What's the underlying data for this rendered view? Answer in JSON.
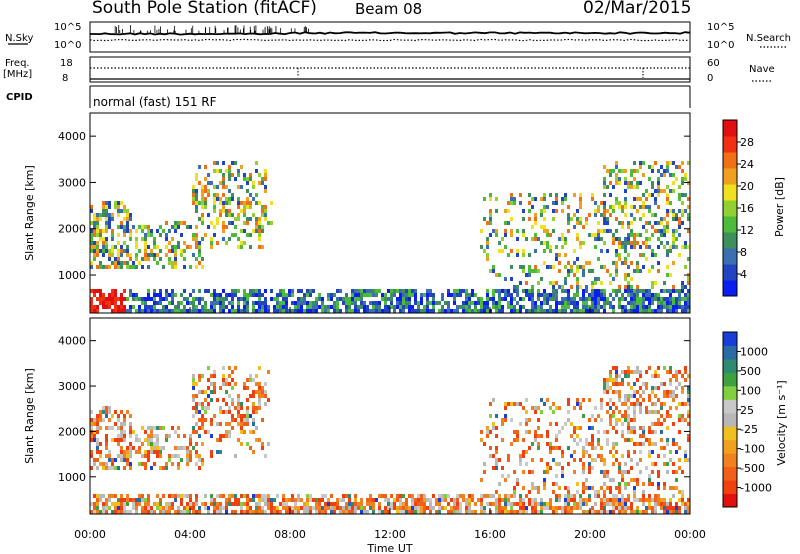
{
  "header": {
    "station": "South Pole Station (fitACF)",
    "beam": "Beam 08",
    "date": "02/Mar/2015"
  },
  "strip_nsky": {
    "left_label": "N.Sky",
    "right_label": "N.Search",
    "left_ticks": [
      "10^5",
      "10^0"
    ],
    "right_ticks": [
      "10^5",
      "10^0"
    ]
  },
  "strip_freq": {
    "left_label_1": "Freq.",
    "left_label_2": "[MHz]",
    "right_label": "Nave",
    "left_ticks": [
      "18",
      "8"
    ],
    "right_ticks": [
      "60",
      "0"
    ]
  },
  "cpid": {
    "label": "CPID",
    "text": "normal (fast) 151 RF"
  },
  "chart_data": [
    {
      "type": "heatmap",
      "name": "power",
      "ylabel": "Slant Range [km]",
      "y_ticks": [
        1000,
        2000,
        3000,
        4000
      ],
      "ylim": [
        180,
        4500
      ],
      "colorbar_label": "Power [dB]",
      "colorbar_ticks": [
        "4",
        "8",
        "12",
        "16",
        "20",
        "24",
        "28"
      ],
      "colorbar_colors": [
        "#0a1ef0",
        "#2244c0",
        "#3c6fb0",
        "#3f8f5c",
        "#4dbb3a",
        "#90d030",
        "#f0e020",
        "#f0a020",
        "#f07018",
        "#f03010",
        "#e01010"
      ]
    },
    {
      "type": "heatmap",
      "name": "velocity",
      "ylabel": "Slant Range [km]",
      "y_ticks": [
        1000,
        2000,
        3000,
        4000
      ],
      "ylim": [
        180,
        4500
      ],
      "xlabel": "Time UT",
      "x_ticks": [
        "00:00",
        "04:00",
        "08:00",
        "12:00",
        "16:00",
        "20:00",
        "00:00"
      ],
      "colorbar_label": "Velocity [m s^-1]",
      "colorbar_ticks": [
        "1000",
        "500",
        "100",
        "25",
        "-25",
        "-100",
        "-500",
        "-1000"
      ],
      "colorbar_colors": [
        "#1a3cd8",
        "#2a6aa8",
        "#2e8a70",
        "#3ea040",
        "#80d040",
        "#c8c8c8",
        "#b8b8b8",
        "#f0c020",
        "#f0a020",
        "#f08020",
        "#f06018",
        "#f04010",
        "#e01010"
      ]
    }
  ]
}
